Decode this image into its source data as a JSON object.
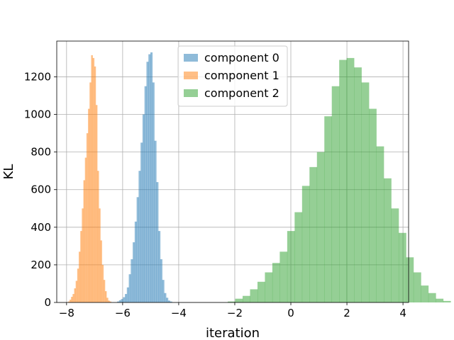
{
  "chart_data": {
    "type": "histogram",
    "xlabel": "iteration",
    "ylabel": "KL",
    "xlim": [
      -8.35,
      4.2
    ],
    "ylim": [
      0,
      1390
    ],
    "xticks": [
      -8,
      -6,
      -4,
      -2,
      0,
      2,
      4
    ],
    "xtick_labels": [
      "−8",
      "−6",
      "−4",
      "−2",
      "0",
      "2",
      "4"
    ],
    "yticks": [
      0,
      200,
      400,
      600,
      800,
      1000,
      1200
    ],
    "ytick_labels": [
      "0",
      "200",
      "400",
      "600",
      "800",
      "1000",
      "1200"
    ],
    "grid": true,
    "legend": {
      "position": "upper center",
      "entries": [
        "component 0",
        "component 1",
        "component 2"
      ]
    },
    "series": [
      {
        "name": "component 0",
        "color": "#1f77b4",
        "alpha": 0.5,
        "bin_start": -6.2,
        "bin_width": 0.07,
        "counts": [
          5,
          12,
          18,
          28,
          45,
          80,
          150,
          230,
          320,
          430,
          560,
          700,
          850,
          1000,
          1150,
          1280,
          1320,
          1330,
          1170,
          860,
          640,
          380,
          230,
          120,
          50,
          25,
          10,
          5
        ]
      },
      {
        "name": "component 1",
        "color": "#ff7f0e",
        "alpha": 0.5,
        "bin_start": -7.95,
        "bin_width": 0.055,
        "counts": [
          5,
          15,
          30,
          45,
          75,
          115,
          180,
          270,
          380,
          500,
          650,
          770,
          900,
          1030,
          1170,
          1315,
          1300,
          1255,
          1050,
          700,
          500,
          330,
          200,
          120,
          60,
          25,
          10,
          5
        ]
      },
      {
        "name": "component 2",
        "color": "#2ca02c",
        "alpha": 0.5,
        "bin_start": -2.25,
        "bin_width": 0.265,
        "counts": [
          5,
          20,
          35,
          70,
          110,
          160,
          210,
          270,
          380,
          480,
          620,
          720,
          800,
          990,
          1150,
          1290,
          1300,
          1250,
          1170,
          1030,
          830,
          660,
          500,
          370,
          240,
          160,
          90,
          50,
          20,
          8
        ]
      }
    ]
  }
}
